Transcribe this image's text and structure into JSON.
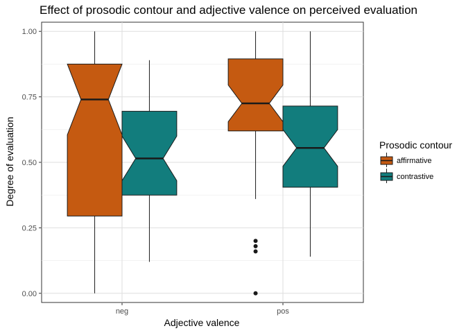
{
  "chart_data": {
    "type": "box",
    "title": "Effect of prosodic contour and adjective valence on perceived evaluation",
    "xlabel": "Adjective valence",
    "ylabel": "Degree of evaluation",
    "categories": [
      "neg",
      "pos"
    ],
    "ylim": [
      -0.035,
      1.035
    ],
    "yticks": [
      0,
      0.25,
      0.5,
      0.75,
      1.0
    ],
    "ytick_labels": [
      "0.00",
      "0.25",
      "0.50",
      "0.75",
      "1.00"
    ],
    "grid": true,
    "notched": true,
    "legend": {
      "title": "Prosodic contour",
      "position": "right"
    },
    "series": [
      {
        "name": "affirmative",
        "color": "#C55A11",
        "boxes": [
          {
            "category": "neg",
            "whisker_low": 0.0,
            "q1": 0.295,
            "median": 0.74,
            "q3": 0.875,
            "whisker_high": 1.0,
            "notch_low": 0.605,
            "notch_high": 0.875,
            "outliers": []
          },
          {
            "category": "pos",
            "whisker_low": 0.36,
            "q1": 0.62,
            "median": 0.725,
            "q3": 0.895,
            "whisker_high": 1.0,
            "notch_low": 0.655,
            "notch_high": 0.795,
            "outliers": [
              0.0,
              0.16,
              0.18,
              0.2
            ]
          }
        ]
      },
      {
        "name": "contrastive",
        "color": "#127D7D",
        "boxes": [
          {
            "category": "neg",
            "whisker_low": 0.12,
            "q1": 0.375,
            "median": 0.515,
            "q3": 0.695,
            "whisker_high": 0.89,
            "notch_low": 0.43,
            "notch_high": 0.6,
            "outliers": []
          },
          {
            "category": "pos",
            "whisker_low": 0.14,
            "q1": 0.405,
            "median": 0.555,
            "q3": 0.715,
            "whisker_high": 1.0,
            "notch_low": 0.485,
            "notch_high": 0.625,
            "outliers": []
          }
        ]
      }
    ]
  }
}
